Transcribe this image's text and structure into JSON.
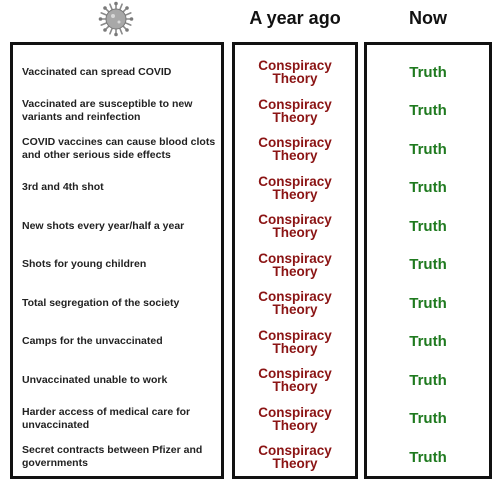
{
  "headers": {
    "a_year_ago": "A year ago",
    "now": "Now"
  },
  "virus_icon": "virus-icon",
  "colors": {
    "conspiracy": "#8b1414",
    "truth": "#1f7a1f"
  },
  "rows": [
    {
      "statement": "Vaccinated can spread COVID",
      "ago": [
        "Conspiracy",
        "Theory"
      ],
      "now": "Truth"
    },
    {
      "statement": "Vaccinated are susceptible to new variants and reinfection",
      "ago": [
        "Conspiracy",
        "Theory"
      ],
      "now": "Truth"
    },
    {
      "statement": "COVID vaccines can cause blood clots and other serious side effects",
      "ago": [
        "Conspiracy",
        "Theory"
      ],
      "now": "Truth"
    },
    {
      "statement": "3rd and 4th shot",
      "ago": [
        "Conspiracy",
        "Theory"
      ],
      "now": "Truth"
    },
    {
      "statement": "New shots every year/half a year",
      "ago": [
        "Conspiracy",
        "Theory"
      ],
      "now": "Truth"
    },
    {
      "statement": "Shots for young children",
      "ago": [
        "Conspiracy",
        "Theory"
      ],
      "now": "Truth"
    },
    {
      "statement": "Total segregation of the society",
      "ago": [
        "Conspiracy",
        "Theory"
      ],
      "now": "Truth"
    },
    {
      "statement": "Camps for the unvaccinated",
      "ago": [
        "Conspiracy",
        "Theory"
      ],
      "now": "Truth"
    },
    {
      "statement": "Unvaccinated unable to work",
      "ago": [
        "Conspiracy",
        "Theory"
      ],
      "now": "Truth"
    },
    {
      "statement": "Harder access of medical care for unvaccinated",
      "ago": [
        "Conspiracy",
        "Theory"
      ],
      "now": "Truth"
    },
    {
      "statement": "Secret contracts between Pfizer and governments",
      "ago": [
        "Conspiracy",
        "Theory"
      ],
      "now": "Truth"
    }
  ]
}
